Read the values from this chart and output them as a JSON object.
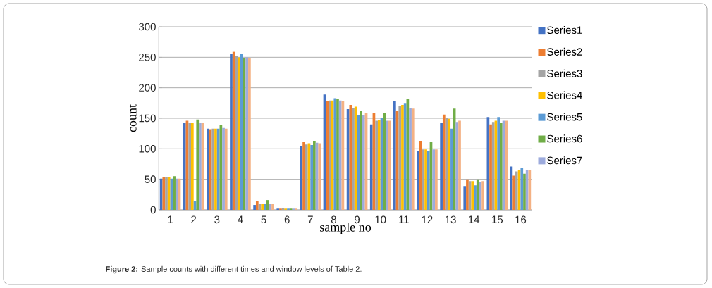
{
  "chart_data": {
    "type": "bar",
    "xlabel": "sample no",
    "ylabel": "count",
    "categories": [
      "1",
      "2",
      "3",
      "4",
      "5",
      "6",
      "7",
      "8",
      "9",
      "10",
      "11",
      "12",
      "13",
      "14",
      "15",
      "16"
    ],
    "series": [
      {
        "name": "Series1",
        "color": "#4472c4",
        "values": [
          51,
          142,
          133,
          255,
          8,
          2,
          105,
          189,
          165,
          140,
          178,
          97,
          142,
          39,
          152,
          71
        ]
      },
      {
        "name": "Series2",
        "color": "#ed7d31",
        "values": [
          54,
          146,
          132,
          259,
          15,
          2,
          112,
          178,
          172,
          158,
          162,
          113,
          156,
          50,
          140,
          56
        ]
      },
      {
        "name": "Series3",
        "color": "#a5a5a5",
        "values": [
          53,
          142,
          133,
          252,
          10,
          3,
          107,
          179,
          167,
          146,
          170,
          99,
          150,
          47,
          144,
          63
        ]
      },
      {
        "name": "Series4",
        "color": "#ffc000",
        "values": [
          53,
          142,
          133,
          250,
          10,
          2,
          109,
          179,
          169,
          147,
          172,
          99,
          149,
          47,
          146,
          65
        ]
      },
      {
        "name": "Series5",
        "color": "#5b9bd5",
        "values": [
          51,
          15,
          133,
          256,
          10,
          2,
          106,
          183,
          155,
          150,
          175,
          97,
          133,
          40,
          152,
          69
        ]
      },
      {
        "name": "Series6",
        "color": "#70ad47",
        "values": [
          55,
          148,
          139,
          248,
          16,
          2,
          113,
          181,
          162,
          158,
          182,
          111,
          166,
          50,
          142,
          59
        ]
      },
      {
        "name": "Series7",
        "color": "#9dabdd",
        "values": [
          51,
          142,
          134,
          250,
          10,
          2,
          110,
          179,
          155,
          146,
          167,
          99,
          144,
          46,
          146,
          65
        ]
      },
      {
        "color": "#f4b183",
        "values": [
          51,
          143,
          133,
          249,
          10,
          2,
          109,
          178,
          158,
          146,
          166,
          99,
          146,
          47,
          146,
          65
        ]
      }
    ],
    "ylim": [
      0,
      300
    ],
    "yticks": [
      0,
      50,
      100,
      150,
      200,
      250,
      300
    ],
    "grid": "y",
    "legend": "right",
    "annotations": [
      "**Figure 2:** Sample counts with different times and window levels of Table 2."
    ]
  }
}
